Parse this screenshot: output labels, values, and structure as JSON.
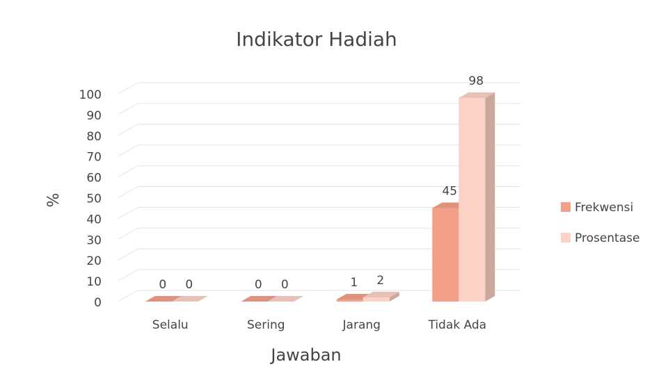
{
  "chart_data": {
    "type": "bar3d",
    "title": "Indikator Hadiah",
    "x_label": "Jawaban",
    "y_label": "%",
    "categories": [
      "Selalu",
      "Sering",
      "Jarang",
      "Tidak Ada"
    ],
    "series": [
      {
        "name": "Frekwensi",
        "color": "#f2a08a",
        "values": [
          0,
          0,
          1,
          45
        ]
      },
      {
        "name": "Prosentase",
        "color": "#fbd2c5",
        "values": [
          0,
          0,
          2,
          98
        ]
      }
    ],
    "ylim": [
      0,
      100
    ],
    "yticks": [
      0,
      10,
      20,
      30,
      40,
      50,
      60,
      70,
      80,
      90,
      100
    ],
    "grid": true,
    "legend": "right"
  }
}
